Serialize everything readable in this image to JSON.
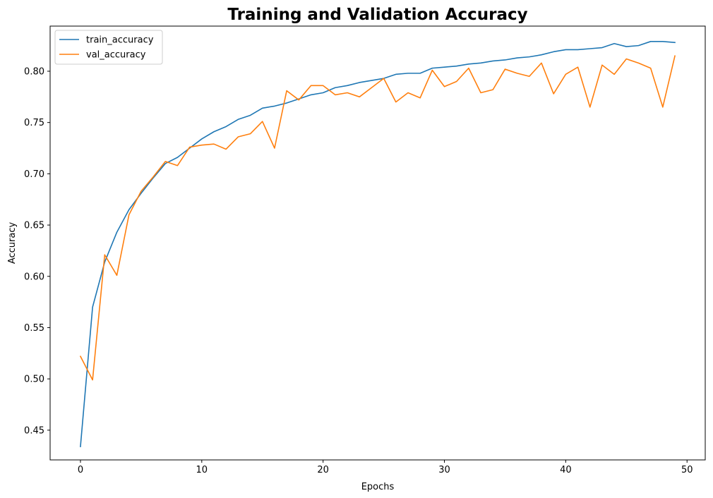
{
  "chart_data": {
    "type": "line",
    "title": "Training and Validation Accuracy",
    "xlabel": "Epochs",
    "ylabel": "Accuracy",
    "xlim": [
      -2.5,
      51.5
    ],
    "ylim": [
      0.421,
      0.844
    ],
    "xticks": [
      0,
      10,
      20,
      30,
      40,
      50
    ],
    "xtick_labels": [
      "0",
      "10",
      "20",
      "30",
      "40",
      "50"
    ],
    "yticks": [
      0.45,
      0.5,
      0.55,
      0.6,
      0.65,
      0.7,
      0.75,
      0.8
    ],
    "ytick_labels": [
      "0.45",
      "0.50",
      "0.55",
      "0.60",
      "0.65",
      "0.70",
      "0.75",
      "0.80"
    ],
    "grid": false,
    "legend_position": "top-left",
    "x": [
      0,
      1,
      2,
      3,
      4,
      5,
      6,
      7,
      8,
      9,
      10,
      11,
      12,
      13,
      14,
      15,
      16,
      17,
      18,
      19,
      20,
      21,
      22,
      23,
      24,
      25,
      26,
      27,
      28,
      29,
      30,
      31,
      32,
      33,
      34,
      35,
      36,
      37,
      38,
      39,
      40,
      41,
      42,
      43,
      44,
      45,
      46,
      47,
      48,
      49
    ],
    "series": [
      {
        "name": "train_accuracy",
        "color": "#1f77b4",
        "values": [
          0.434,
          0.57,
          0.614,
          0.643,
          0.665,
          0.681,
          0.696,
          0.71,
          0.716,
          0.725,
          0.734,
          0.741,
          0.746,
          0.753,
          0.757,
          0.764,
          0.766,
          0.769,
          0.773,
          0.777,
          0.779,
          0.784,
          0.786,
          0.789,
          0.791,
          0.793,
          0.797,
          0.798,
          0.798,
          0.803,
          0.804,
          0.805,
          0.807,
          0.808,
          0.81,
          0.811,
          0.813,
          0.814,
          0.816,
          0.819,
          0.821,
          0.821,
          0.822,
          0.823,
          0.827,
          0.824,
          0.825,
          0.829,
          0.829,
          0.828
        ]
      },
      {
        "name": "val_accuracy",
        "color": "#ff7f0e",
        "values": [
          0.522,
          0.499,
          0.621,
          0.601,
          0.66,
          0.683,
          0.697,
          0.712,
          0.708,
          0.726,
          0.728,
          0.729,
          0.724,
          0.736,
          0.739,
          0.751,
          0.725,
          0.781,
          0.772,
          0.786,
          0.786,
          0.777,
          0.779,
          0.775,
          0.784,
          0.793,
          0.77,
          0.779,
          0.774,
          0.801,
          0.785,
          0.79,
          0.803,
          0.779,
          0.782,
          0.802,
          0.798,
          0.795,
          0.808,
          0.778,
          0.797,
          0.804,
          0.765,
          0.806,
          0.797,
          0.812,
          0.808,
          0.803,
          0.765,
          0.815
        ]
      }
    ]
  }
}
